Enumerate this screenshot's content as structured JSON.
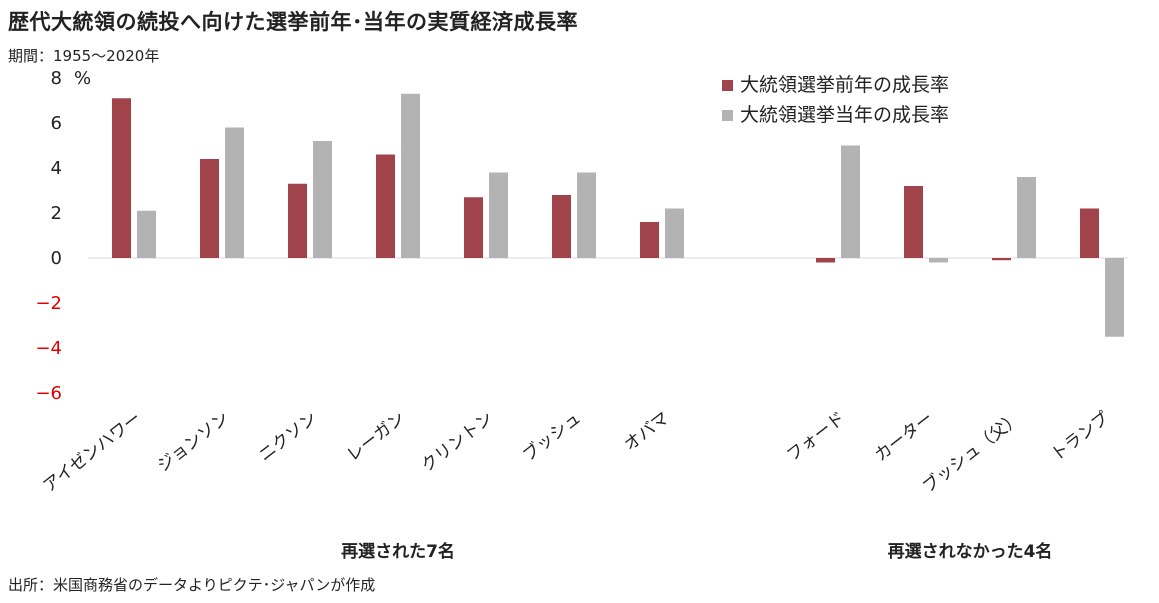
{
  "header": {
    "title": "歴代大統領の続投へ向けた選挙前年･当年の実質経済成長率",
    "subtitle": "期間：1955～2020年"
  },
  "footer": {
    "source": "出所：米国商務省のデータよりピクテ･ジャパンが作成"
  },
  "colors": {
    "prev_year": "#a0434a",
    "election_year": "#b3b3b3",
    "negative_tick": "#e00000"
  },
  "chart_data": {
    "type": "bar",
    "title": "歴代大統領の続投へ向けた選挙前年･当年の実質経済成長率",
    "subtitle": "期間：1955～2020年",
    "ylabel": "%",
    "ylim": [
      -6,
      8
    ],
    "yticks": [
      8,
      6,
      4,
      2,
      0,
      -2,
      -4,
      -6
    ],
    "categories": [
      "アイゼンハワー",
      "ジョンソン",
      "ニクソン",
      "レーガン",
      "クリントン",
      "ブッシュ",
      "オバマ",
      "フォード",
      "カーター",
      "ブッシュ（父）",
      "トランプ"
    ],
    "groups": [
      {
        "label": "再選された7名",
        "count": 7
      },
      {
        "label": "再選されなかった4名",
        "count": 4
      }
    ],
    "series": [
      {
        "name": "大統領選挙前年の成長率",
        "values": [
          7.1,
          4.4,
          3.3,
          4.6,
          2.7,
          2.8,
          1.6,
          -0.2,
          3.2,
          -0.1,
          2.2
        ]
      },
      {
        "name": "大統領選挙当年の成長率",
        "values": [
          2.1,
          5.8,
          5.2,
          7.3,
          3.8,
          3.8,
          2.2,
          5.0,
          -0.2,
          3.6,
          -3.5
        ]
      }
    ],
    "legend_position": "top-right",
    "grid": false
  }
}
